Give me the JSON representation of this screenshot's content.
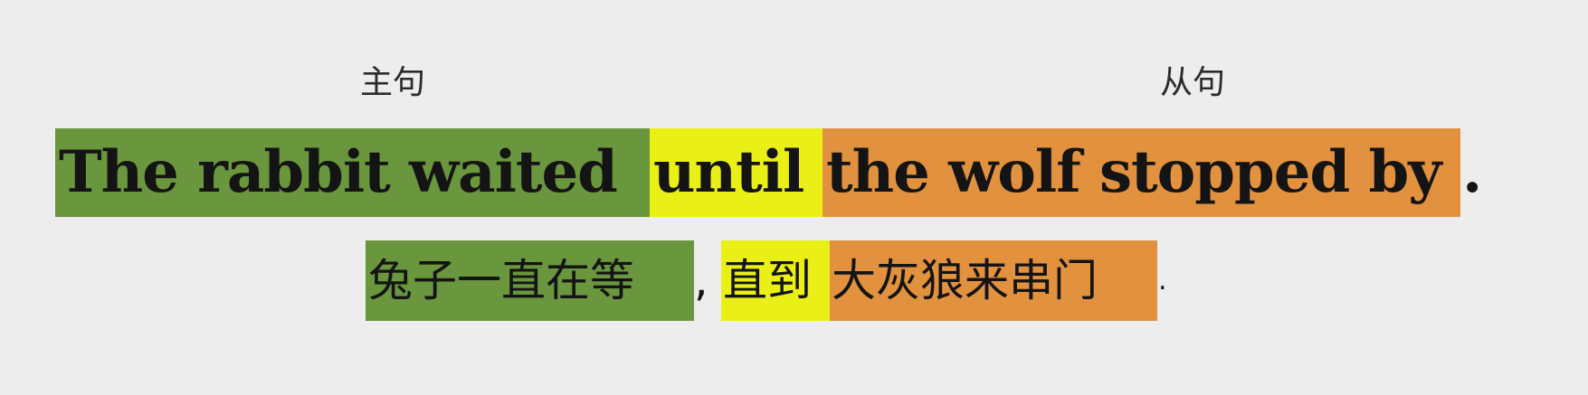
{
  "labels": {
    "main_clause": "主句",
    "subordinate_clause": "从句"
  },
  "english": {
    "main": "The rabbit waited",
    "conjunction": "until",
    "subordinate": "the wolf stopped by",
    "end_punct": "."
  },
  "chinese": {
    "main": "兔子一直在等",
    "comma": ",",
    "conjunction": "直到",
    "subordinate": "大灰狼来串门",
    "end_punct": "."
  },
  "colors": {
    "background": "#ededed",
    "main_clause": "#6a963d",
    "conjunction": "#eaf016",
    "subordinate_clause": "#e2913e",
    "text": "#141414"
  }
}
